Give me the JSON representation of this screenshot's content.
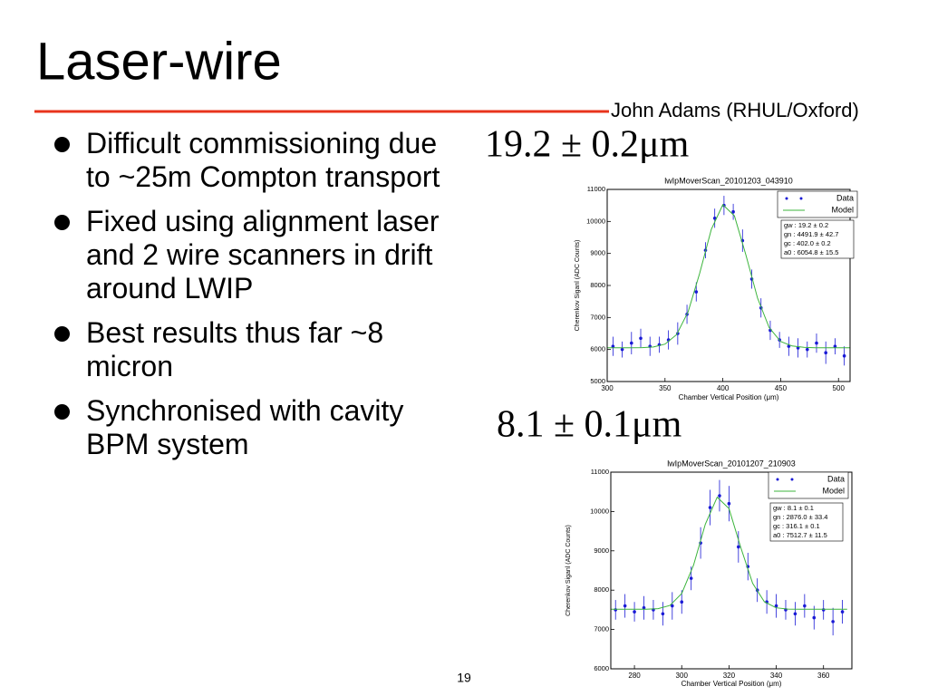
{
  "slide": {
    "title": "Laser-wire",
    "author": "John Adams (RHUL/Oxford)",
    "bullets": [
      "Difficult commissioning due to ~25m Compton transport",
      "Fixed using alignment laser and 2 wire scanners in drift around LWIP",
      "Best results thus far ~8 micron",
      "Synchronised with cavity BPM system"
    ],
    "results": [
      "19.2 ± 0.2μm",
      "8.1 ± 0.1μm"
    ],
    "page_number": "19"
  },
  "chart_data": [
    {
      "type": "scatter",
      "title": "lwIpMoverScan_20101203_043910",
      "xlabel": "Chamber Vertical Position (μm)",
      "ylabel": "Cherenkov Siganl (ADC Counts)",
      "xlim": [
        300,
        510
      ],
      "ylim": [
        5000,
        11000
      ],
      "xticks": [
        300,
        350,
        400,
        450,
        500
      ],
      "yticks": [
        5000,
        6000,
        7000,
        8000,
        9000,
        10000,
        11000
      ],
      "legend": "upper right",
      "annotation": [
        "gw : 19.2 ± 0.2",
        "gn : 4491.9 ± 42.7",
        "gc : 402.0 ± 0.2",
        "a0 : 6054.8 ± 15.5"
      ],
      "series": [
        {
          "name": "Data",
          "color": "#1a1ad6",
          "style": "points",
          "x": [
            305,
            313,
            321,
            329,
            337,
            345,
            353,
            361,
            369,
            377,
            385,
            393,
            401,
            409,
            417,
            425,
            433,
            441,
            449,
            457,
            465,
            473,
            481,
            489,
            497,
            505
          ],
          "values": [
            6100,
            6000,
            6200,
            6350,
            6100,
            6150,
            6300,
            6500,
            7100,
            7800,
            9100,
            10100,
            10500,
            10300,
            9400,
            8200,
            7300,
            6600,
            6300,
            6100,
            6050,
            6000,
            6200,
            5900,
            6100,
            5800
          ],
          "errors": [
            300,
            250,
            350,
            300,
            300,
            250,
            300,
            350,
            300,
            300,
            250,
            300,
            300,
            250,
            350,
            300,
            300,
            300,
            250,
            300,
            300,
            250,
            300,
            350,
            250,
            300
          ]
        },
        {
          "name": "Model",
          "color": "#3cb43c",
          "style": "line",
          "x": [
            300,
            310,
            320,
            330,
            340,
            350,
            360,
            370,
            380,
            390,
            400,
            410,
            420,
            430,
            440,
            450,
            460,
            470,
            480,
            490,
            500,
            510
          ],
          "values": [
            6055,
            6055,
            6055,
            6059,
            6079,
            6170,
            6465,
            7175,
            8385,
            9752,
            10523,
            10174,
            8948,
            7606,
            6688,
            6252,
            6110,
            6068,
            6056,
            6055,
            6055,
            6055
          ]
        }
      ]
    },
    {
      "type": "scatter",
      "title": "lwIpMoverScan_20101207_210903",
      "xlabel": "Chamber Vertical Position (μm)",
      "ylabel": "Cherenkov Siganl (ADC Counts)",
      "xlim": [
        270,
        372
      ],
      "ylim": [
        6000,
        11000
      ],
      "xticks": [
        280,
        300,
        320,
        340,
        360
      ],
      "yticks": [
        6000,
        7000,
        8000,
        9000,
        10000,
        11000
      ],
      "legend": "upper right",
      "annotation": [
        "gw : 8.1 ± 0.1",
        "gn : 2876.0 ± 33.4",
        "gc : 316.1 ± 0.1",
        "a0 : 7512.7 ± 11.5"
      ],
      "series": [
        {
          "name": "Data",
          "color": "#1a1ad6",
          "style": "points",
          "x": [
            272,
            276,
            280,
            284,
            288,
            292,
            296,
            300,
            304,
            308,
            312,
            316,
            320,
            324,
            328,
            332,
            336,
            340,
            344,
            348,
            352,
            356,
            360,
            364,
            368
          ],
          "values": [
            7500,
            7600,
            7450,
            7550,
            7500,
            7400,
            7600,
            7700,
            8300,
            9200,
            10100,
            10400,
            10200,
            9100,
            8600,
            8000,
            7700,
            7600,
            7500,
            7400,
            7600,
            7300,
            7500,
            7200,
            7450
          ],
          "errors": [
            250,
            300,
            250,
            300,
            250,
            300,
            350,
            300,
            300,
            400,
            450,
            400,
            450,
            400,
            350,
            300,
            300,
            300,
            250,
            300,
            300,
            300,
            250,
            350,
            300
          ]
        },
        {
          "name": "Model",
          "color": "#3cb43c",
          "style": "line",
          "x": [
            270,
            275,
            280,
            285,
            290,
            295,
            300,
            305,
            310,
            315,
            320,
            325,
            330,
            335,
            340,
            345,
            350,
            355,
            360,
            365,
            370
          ],
          "values": [
            7513,
            7513,
            7513,
            7515,
            7529,
            7610,
            7912,
            8637,
            9678,
            10363,
            10073,
            9086,
            8172,
            7702,
            7550,
            7518,
            7513,
            7513,
            7513,
            7513,
            7513
          ]
        }
      ]
    }
  ]
}
